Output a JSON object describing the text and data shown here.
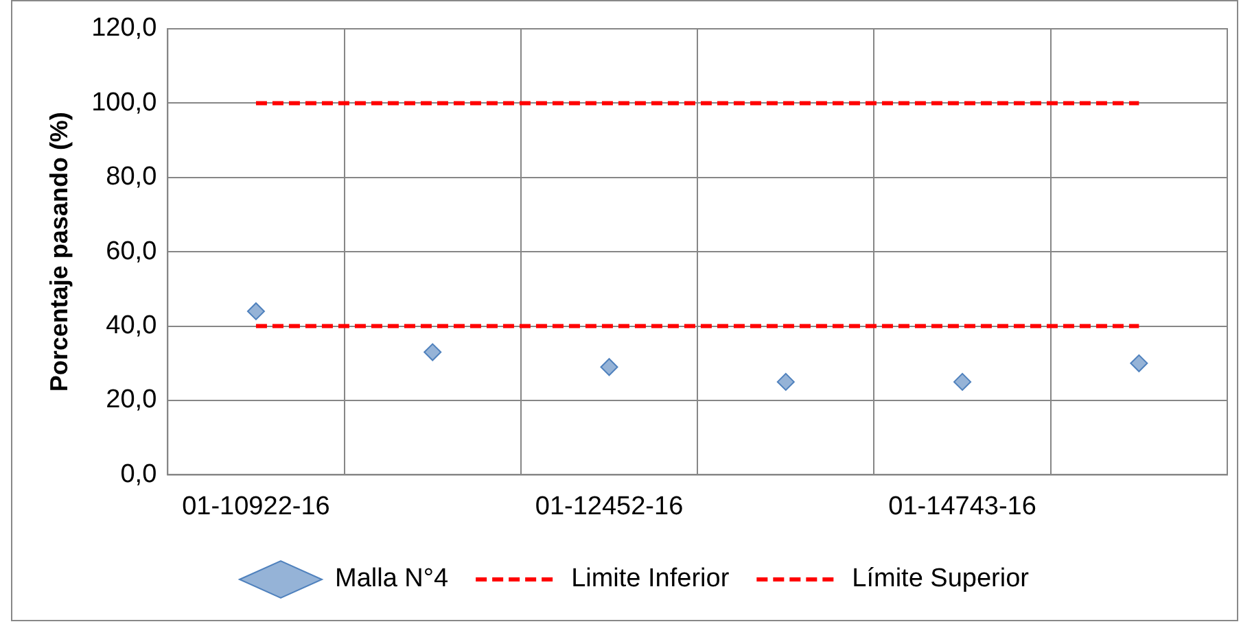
{
  "chart_data": {
    "type": "scatter",
    "ylabel": "Porcentaje pasando (%)",
    "categories": [
      "01-10922-16",
      null,
      "01-12452-16",
      null,
      "01-14743-16",
      null
    ],
    "series": [
      {
        "name": "Malla N°4",
        "color": "#95b3d7",
        "marker": "diamond",
        "values": [
          44,
          33,
          29,
          25,
          25,
          30
        ]
      },
      {
        "name": "Limite Inferior",
        "type": "line",
        "color": "#ff0000",
        "marker": "none",
        "line_style": "dashed",
        "values": [
          40,
          40,
          40,
          40,
          40,
          40
        ]
      },
      {
        "name": "Límite Superior",
        "type": "line",
        "color": "#ff0000",
        "marker": "none",
        "line_style": "dashed",
        "values": [
          100,
          100,
          100,
          100,
          100,
          100
        ]
      }
    ],
    "ylim": [
      0,
      120
    ],
    "yticks": [
      {
        "value": 0,
        "label": "0,0"
      },
      {
        "value": 20,
        "label": "20,0"
      },
      {
        "value": 40,
        "label": "40,0"
      },
      {
        "value": 60,
        "label": "60,0"
      },
      {
        "value": 80,
        "label": "80,0"
      },
      {
        "value": 100,
        "label": "100,0"
      },
      {
        "value": 120,
        "label": "120,0"
      }
    ],
    "grid": true,
    "legend": "bottom"
  }
}
